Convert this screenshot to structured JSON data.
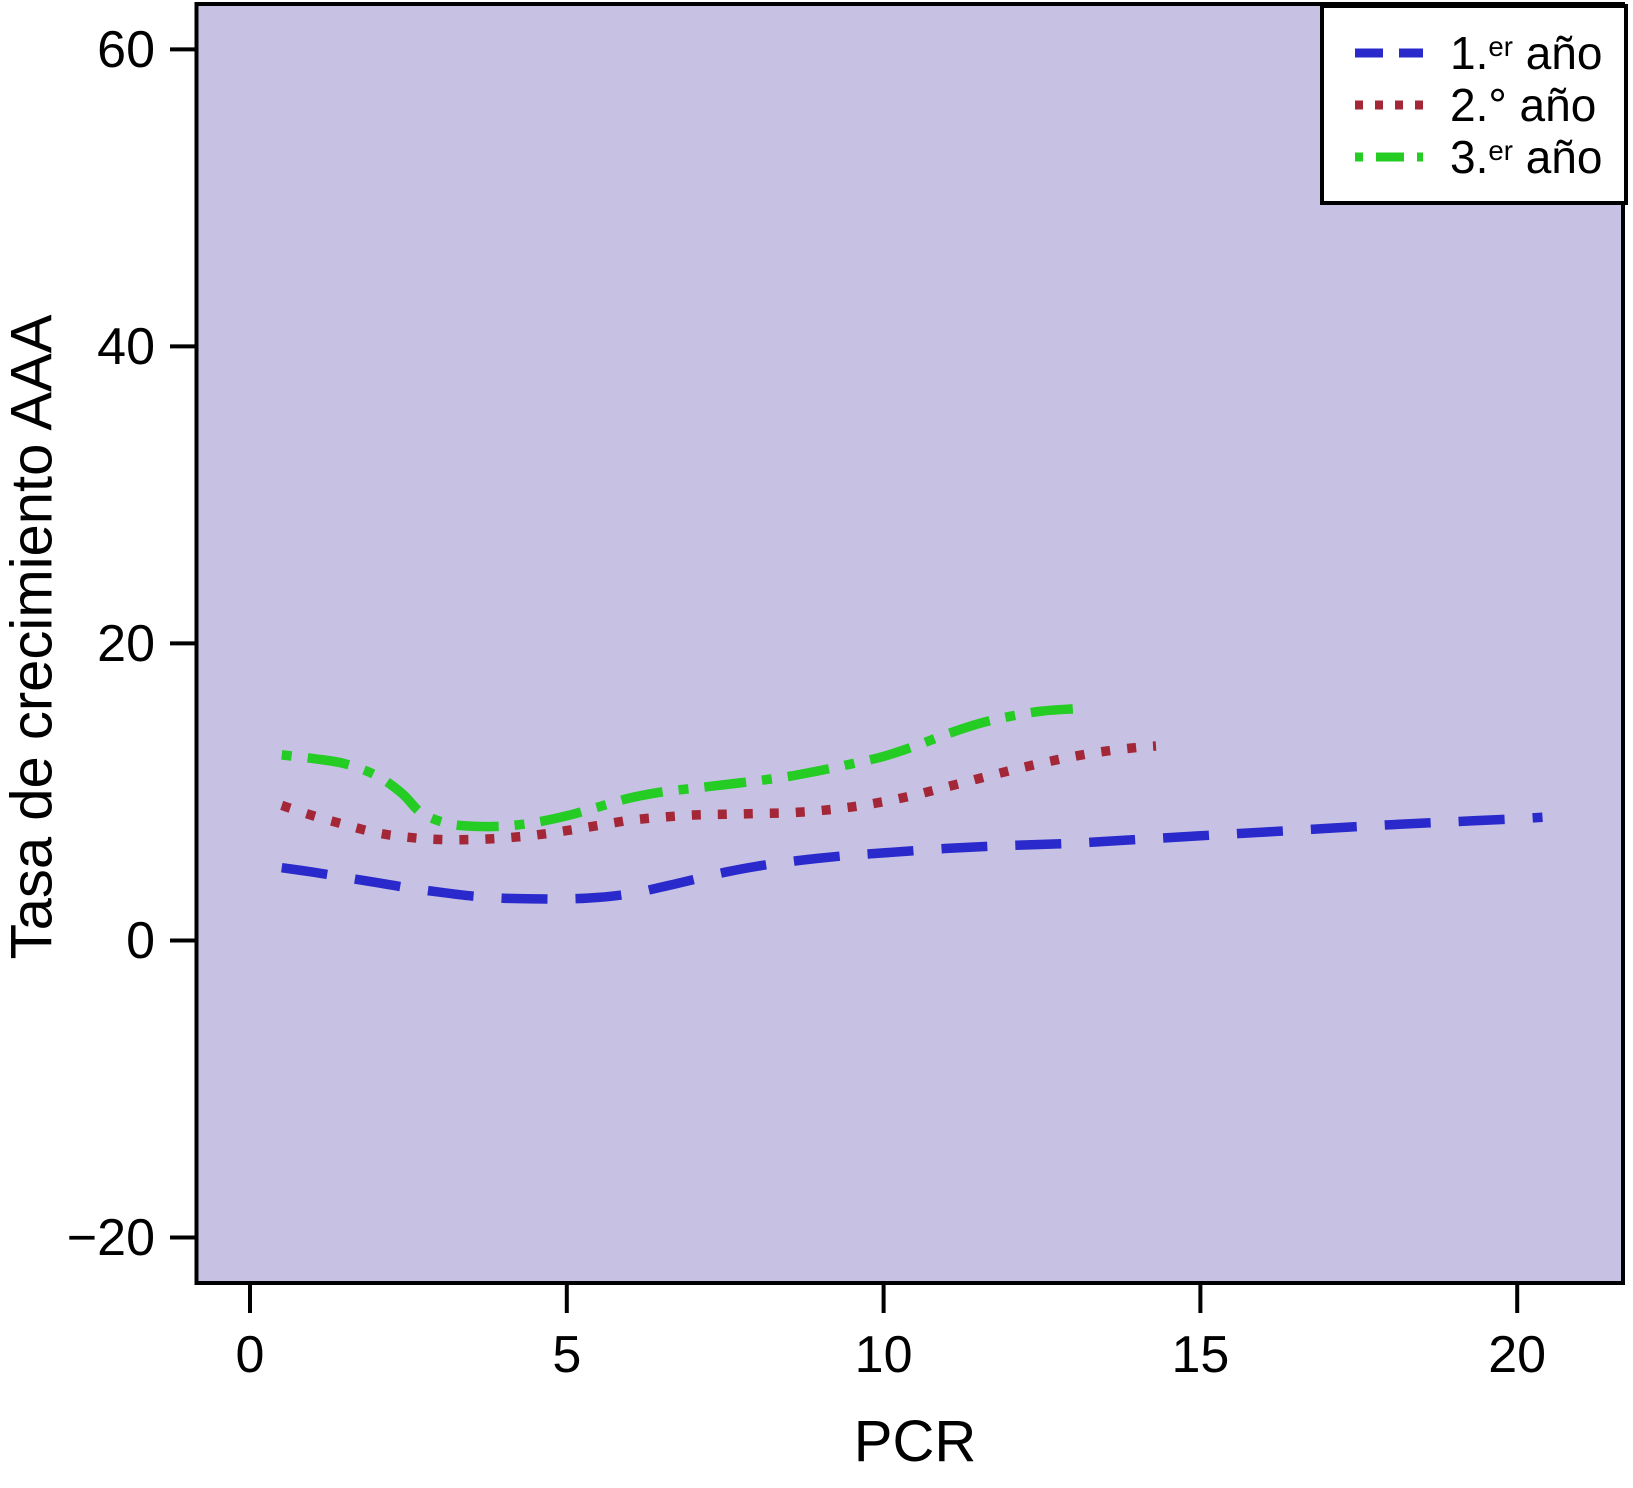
{
  "axes": {
    "x_label": "PCR",
    "y_label": "Tasa de crecimiento AAA",
    "x_tick_labels": [
      "0",
      "5",
      "10",
      "15",
      "20"
    ],
    "y_tick_labels": [
      "60",
      "40",
      "20",
      "0",
      "−20"
    ]
  },
  "legend": {
    "items": [
      {
        "prefix": "1.",
        "sup": "er",
        "rest": " año"
      },
      {
        "prefix": "2.°",
        "sup": "",
        "rest": " año"
      },
      {
        "prefix": "3.",
        "sup": "er",
        "rest": " año"
      }
    ]
  },
  "colors": {
    "plot_background": "#C7C2E4",
    "frame": "#000000",
    "series_blue": "#2A2ACC",
    "series_red": "#A32737",
    "series_green": "#24CC24"
  },
  "chart_data": {
    "type": "line",
    "title": "",
    "xlabel": "PCR",
    "ylabel": "Tasa de crecimiento AAA",
    "xlim": [
      -0.85,
      21.7
    ],
    "ylim": [
      -23.1,
      63.1
    ],
    "x_ticks": [
      0,
      5,
      10,
      15,
      20
    ],
    "y_ticks": [
      60,
      40,
      20,
      0,
      -20
    ],
    "grid": false,
    "legend_position": "top-right",
    "plot_background": "#C7C2E4",
    "series": [
      {
        "name": "1.er año",
        "color": "#2A2ACC",
        "line_style": "dashed",
        "points": [
          [
            0.5,
            4.9
          ],
          [
            1,
            4.6
          ],
          [
            1.5,
            4.25
          ],
          [
            2,
            3.9
          ],
          [
            2.5,
            3.55
          ],
          [
            3,
            3.25
          ],
          [
            3.5,
            3.0
          ],
          [
            4,
            2.85
          ],
          [
            4.5,
            2.8
          ],
          [
            5,
            2.8
          ],
          [
            5.5,
            2.9
          ],
          [
            6,
            3.15
          ],
          [
            6.5,
            3.6
          ],
          [
            7,
            4.1
          ],
          [
            7.5,
            4.6
          ],
          [
            8,
            5.0
          ],
          [
            8.5,
            5.3
          ],
          [
            9,
            5.55
          ],
          [
            9.5,
            5.75
          ],
          [
            10,
            5.9
          ],
          [
            11,
            6.2
          ],
          [
            12,
            6.4
          ],
          [
            13,
            6.55
          ],
          [
            14,
            6.8
          ],
          [
            15,
            7.05
          ],
          [
            16,
            7.3
          ],
          [
            17,
            7.55
          ],
          [
            18,
            7.8
          ],
          [
            19,
            8.0
          ],
          [
            20,
            8.2
          ],
          [
            20.4,
            8.3
          ]
        ]
      },
      {
        "name": "2.° año",
        "color": "#A32737",
        "line_style": "dotted",
        "points": [
          [
            0.5,
            9.1
          ],
          [
            1,
            8.4
          ],
          [
            1.5,
            7.8
          ],
          [
            2,
            7.25
          ],
          [
            2.5,
            6.95
          ],
          [
            3,
            6.8
          ],
          [
            3.5,
            6.8
          ],
          [
            4,
            6.9
          ],
          [
            4.5,
            7.1
          ],
          [
            5,
            7.4
          ],
          [
            5.5,
            7.75
          ],
          [
            6,
            8.1
          ],
          [
            6.5,
            8.3
          ],
          [
            7,
            8.45
          ],
          [
            7.5,
            8.5
          ],
          [
            8,
            8.55
          ],
          [
            8.5,
            8.6
          ],
          [
            9,
            8.75
          ],
          [
            9.5,
            9.0
          ],
          [
            10,
            9.35
          ],
          [
            10.5,
            9.8
          ],
          [
            11,
            10.35
          ],
          [
            11.5,
            10.9
          ],
          [
            12,
            11.45
          ],
          [
            12.5,
            11.95
          ],
          [
            13,
            12.4
          ],
          [
            13.5,
            12.75
          ],
          [
            14,
            13.0
          ],
          [
            14.3,
            13.1
          ]
        ]
      },
      {
        "name": "3.er año",
        "color": "#24CC24",
        "line_style": "dashdot",
        "points": [
          [
            0.5,
            12.5
          ],
          [
            1,
            12.25
          ],
          [
            1.5,
            11.9
          ],
          [
            2,
            11.1
          ],
          [
            2.4,
            9.9
          ],
          [
            2.7,
            8.6
          ],
          [
            3.1,
            7.9
          ],
          [
            3.5,
            7.7
          ],
          [
            4,
            7.7
          ],
          [
            4.5,
            7.95
          ],
          [
            5,
            8.4
          ],
          [
            5.5,
            9.0
          ],
          [
            6,
            9.6
          ],
          [
            6.5,
            10.0
          ],
          [
            7,
            10.25
          ],
          [
            7.5,
            10.5
          ],
          [
            8,
            10.75
          ],
          [
            8.5,
            11.05
          ],
          [
            9,
            11.45
          ],
          [
            9.5,
            11.9
          ],
          [
            10,
            12.4
          ],
          [
            10.5,
            13.1
          ],
          [
            11,
            13.9
          ],
          [
            11.5,
            14.6
          ],
          [
            12,
            15.1
          ],
          [
            12.5,
            15.45
          ],
          [
            13,
            15.6
          ]
        ]
      }
    ]
  }
}
